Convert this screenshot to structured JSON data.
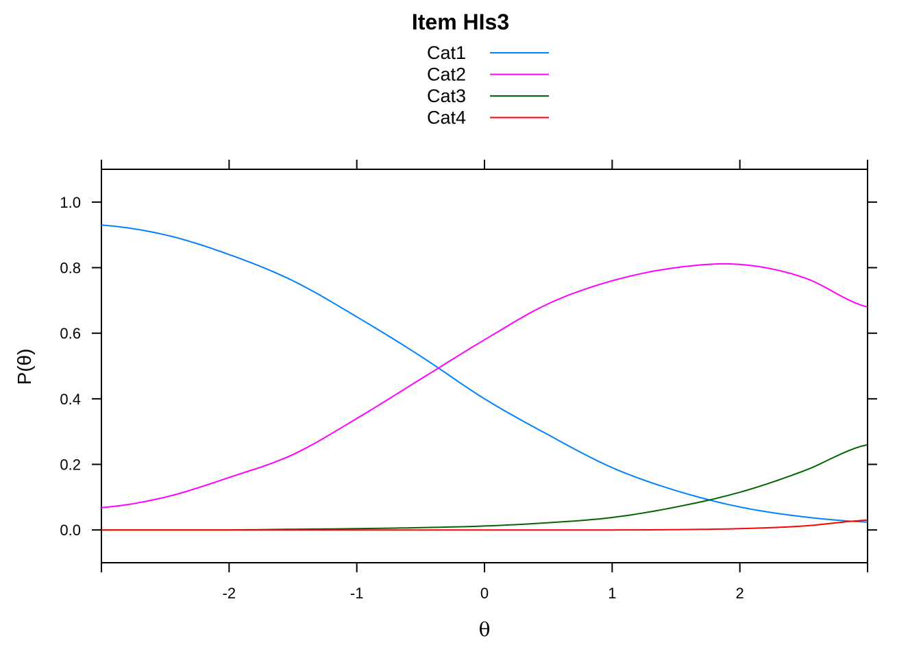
{
  "chart_data": {
    "type": "line",
    "title": "Item HIs3",
    "xlabel": "θ",
    "ylabel": "P(θ)",
    "xlim": [
      -3,
      3
    ],
    "ylim": [
      -0.1,
      1.1
    ],
    "x_ticks": [
      -2,
      -1,
      0,
      1,
      2
    ],
    "y_ticks": [
      0.0,
      0.2,
      0.4,
      0.6,
      0.8,
      1.0
    ],
    "x_tick_labels": [
      "-2",
      "-1",
      "0",
      "1",
      "2"
    ],
    "y_tick_labels": [
      "0.0",
      "0.2",
      "0.4",
      "0.6",
      "0.8",
      "1.0"
    ],
    "legend_position": "top",
    "grid": false,
    "x": [
      -3.0,
      -2.5,
      -2.0,
      -1.5,
      -1.0,
      -0.5,
      0.0,
      0.5,
      1.0,
      1.5,
      2.0,
      2.5,
      3.0
    ],
    "series": [
      {
        "name": "Cat1",
        "color": "#0080ff",
        "values": [
          0.93,
          0.9,
          0.84,
          0.76,
          0.65,
          0.53,
          0.4,
          0.29,
          0.19,
          0.12,
          0.07,
          0.04,
          0.024
        ]
      },
      {
        "name": "Cat2",
        "color": "#ff00ff",
        "values": [
          0.068,
          0.1,
          0.16,
          0.23,
          0.34,
          0.46,
          0.58,
          0.69,
          0.76,
          0.8,
          0.81,
          0.77,
          0.68
        ]
      },
      {
        "name": "Cat3",
        "color": "#006400",
        "values": [
          0.0,
          0.0,
          0.0,
          0.002,
          0.004,
          0.007,
          0.012,
          0.022,
          0.038,
          0.07,
          0.115,
          0.18,
          0.26
        ]
      },
      {
        "name": "Cat4",
        "color": "#ff0000",
        "values": [
          0.0,
          0.0,
          0.0,
          0.0,
          0.0,
          0.0,
          0.0,
          0.0,
          0.0,
          0.001,
          0.004,
          0.012,
          0.03
        ]
      }
    ]
  }
}
